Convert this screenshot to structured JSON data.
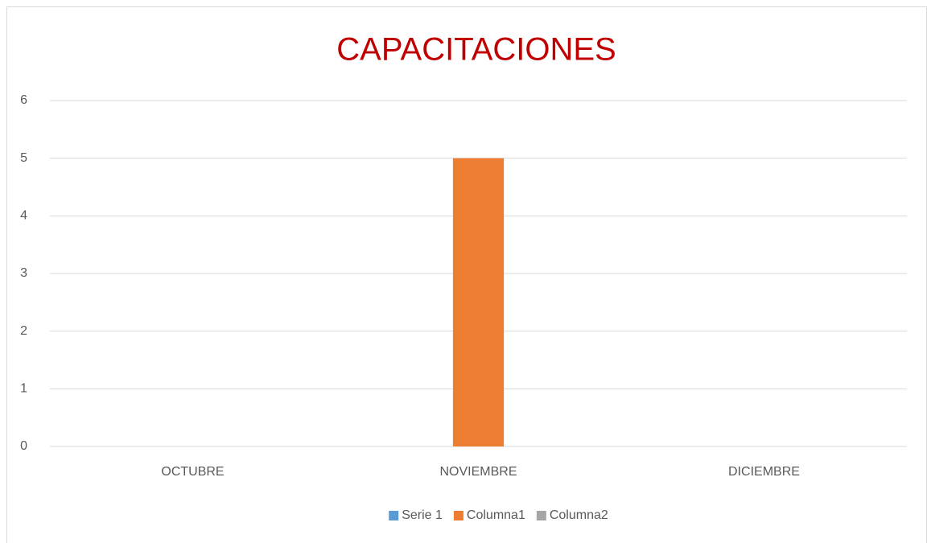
{
  "chart_data": {
    "type": "bar",
    "title": "CAPACITACIONES",
    "categories": [
      "OCTUBRE",
      "NOVIEMBRE",
      "DICIEMBRE"
    ],
    "series": [
      {
        "name": "Serie 1",
        "color": "#5b9bd5",
        "values": [
          0,
          0,
          0
        ]
      },
      {
        "name": "Columna1",
        "color": "#ed7d31",
        "values": [
          0,
          5,
          0
        ]
      },
      {
        "name": "Columna2",
        "color": "#a5a5a5",
        "values": [
          0,
          0,
          0
        ]
      }
    ],
    "ylim": [
      0,
      6
    ],
    "yticks": [
      0,
      1,
      2,
      3,
      4,
      5,
      6
    ],
    "grid": true,
    "legend": "bottom"
  }
}
